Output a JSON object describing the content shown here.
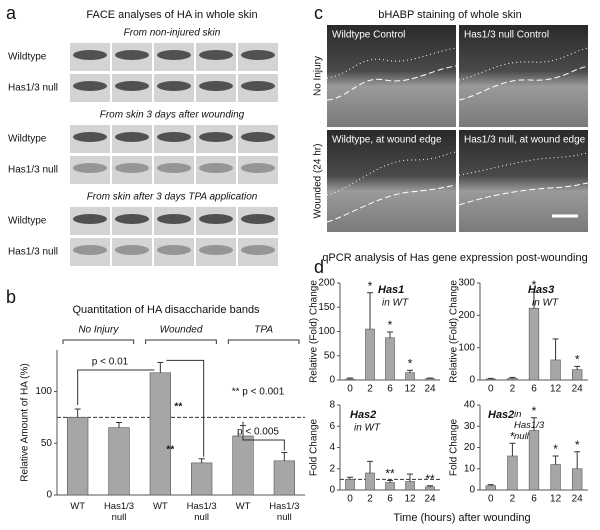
{
  "panels": {
    "a": {
      "label": "a",
      "title": "FACE analyses of HA in whole skin",
      "sections": [
        {
          "subtitle": "From non-injured skin",
          "rows": [
            "Wildtype",
            "Has1/3 null"
          ]
        },
        {
          "subtitle": "From skin 3 days after wounding",
          "rows": [
            "Wildtype",
            "Has1/3 null"
          ]
        },
        {
          "subtitle": "From skin after 3 days TPA application",
          "rows": [
            "Wildtype",
            "Has1/3 null"
          ]
        }
      ]
    },
    "b": {
      "label": "b"
    },
    "c": {
      "label": "c",
      "title": "bHABP staining of whole skin",
      "row_labels": [
        "No Injury",
        "Wounded (24 hr)"
      ],
      "image_labels": [
        "Wildtype Control",
        "Has1/3 null Control",
        "Wildtype, at wound edge",
        "Has1/3 null, at wound edge"
      ]
    },
    "d": {
      "label": "d",
      "title": "qPCR analysis of Has gene expression post-wounding",
      "xlabel": "Time (hours) after wounding"
    }
  },
  "chart_data": [
    {
      "type": "bar",
      "title": "Quantitation of HA disaccharide bands",
      "ylabel": "Relative Amount of HA (%)",
      "group_labels": [
        "No Injury",
        "Wounded",
        "TPA"
      ],
      "categories": [
        "WT",
        "Has1/3 null",
        "WT",
        "Has1/3 null",
        "WT",
        "Has1/3 null"
      ],
      "values": [
        75,
        65,
        118,
        31,
        57,
        33
      ],
      "errors": [
        8,
        5,
        10,
        4,
        10,
        8
      ],
      "ylim": [
        0,
        140
      ],
      "yticks": [
        0,
        50,
        100
      ],
      "ref_line": 75,
      "color": "#a6a6a6",
      "annotations": [
        "p < 0.01",
        "** p < 0.001",
        "p < 0.005",
        "**",
        "**"
      ]
    },
    {
      "type": "bar",
      "gene": "Has1",
      "subtitle": "in WT",
      "ylabel": "Relative (Fold) Change",
      "categories": [
        0,
        2,
        6,
        12,
        24
      ],
      "values": [
        2,
        105,
        87,
        15,
        3
      ],
      "errors": [
        2,
        75,
        12,
        5,
        1
      ],
      "significance": [
        null,
        "*",
        "*",
        "*",
        null
      ],
      "ylim": [
        0,
        200
      ],
      "yticks": [
        0,
        50,
        100,
        150,
        200
      ],
      "color": "#a6a6a6"
    },
    {
      "type": "bar",
      "gene": "Has3",
      "subtitle": "in WT",
      "ylabel": "Relative (Fold) Change",
      "categories": [
        0,
        2,
        6,
        12,
        24
      ],
      "values": [
        3,
        5,
        222,
        62,
        32
      ],
      "errors": [
        2,
        3,
        50,
        65,
        10
      ],
      "significance": [
        null,
        null,
        "*",
        null,
        "*"
      ],
      "ylim": [
        0,
        300
      ],
      "yticks": [
        0,
        100,
        200,
        300
      ],
      "color": "#a6a6a6"
    },
    {
      "type": "bar",
      "gene": "Has2",
      "subtitle": "in WT",
      "ylabel": "Fold Change",
      "categories": [
        0,
        2,
        6,
        12,
        24
      ],
      "values": [
        1.0,
        1.6,
        0.7,
        0.8,
        0.3
      ],
      "errors": [
        0.2,
        1.1,
        0.2,
        0.7,
        0.1
      ],
      "significance": [
        null,
        null,
        "**",
        null,
        "**"
      ],
      "ylim": [
        0,
        8
      ],
      "yticks": [
        0,
        2,
        4,
        6,
        8
      ],
      "ref_line": 1,
      "color": "#a6a6a6"
    },
    {
      "type": "bar",
      "gene": "Has2",
      "subtitle": "in Has1/3 null",
      "ylabel": "Fold Change",
      "categories": [
        0,
        2,
        6,
        12,
        24
      ],
      "values": [
        2,
        16,
        28,
        12,
        10
      ],
      "errors": [
        0.5,
        6,
        6,
        4,
        8
      ],
      "significance": [
        null,
        "*",
        "*",
        "*",
        "*"
      ],
      "ylim": [
        0,
        40
      ],
      "yticks": [
        0,
        10,
        20,
        30,
        40
      ],
      "color": "#a6a6a6"
    }
  ]
}
